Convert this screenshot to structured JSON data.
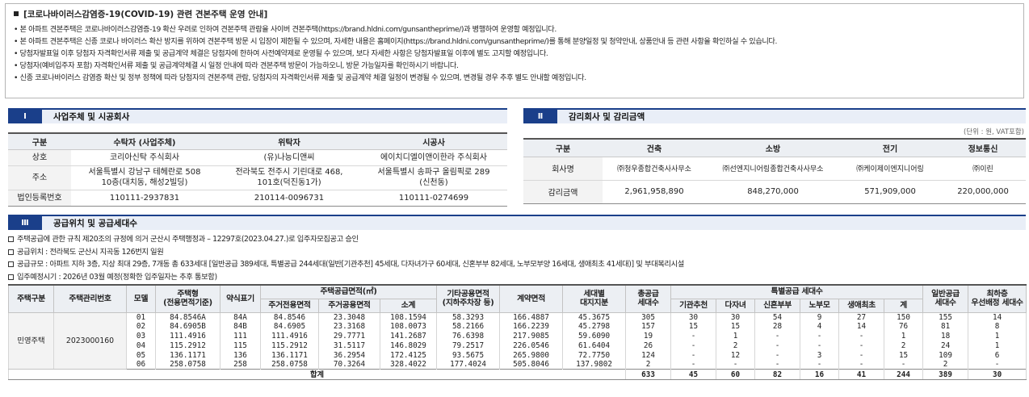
{
  "notice": {
    "title": "[코로나바이러스감염증-19(COVID-19) 관련 견본주택 운영 안내]",
    "items": [
      "• 본 아파트 견본주택은 코로나바이러스감염증-19 확산 우려로 인하여 견본주택 관람을 사이버 견본주택(https://brand.hldni.com/gunsantheprime/)과 병행하여 운영할 예정입니다.",
      "• 본 아파트 견본주택은 신종 코로나 바이러스 확산 방지를 위하여 견본주택 방문 시 입장이 제한될 수 있으며, 자세한 내용은 홈페이지(https://brand.hldni.com/gunsantheprime/)를 통해 분양일정 및 청약안내, 상품안내 등 관련 사항을 확인하실 수 있습니다.",
      "• 당첨자발표일 이후 당첨자 자격확인서류 제출 및 공급계약 체결은 당첨자에 한하여 사전예약제로 운영될 수 있으며, 보다 자세한 사항은 당첨자발표일 이후에 별도 고지할 예정입니다.",
      "• 당첨자(예비입주자 포함) 자격확인서류 제출 및 공급계약체결 시  일정 안내에 따라 견본주택 방문이 가능하오니, 방문 가능일자를 확인하시기 바랍니다.",
      "• 신종 코로나바이러스 감염증 확산 및 정부 정책에 따라 당첨자의 견본주택 관람, 당첨자의 자격확인서류 제출 및 공급계약 체결 일정이 변경될 수 있으며, 변경될 경우 추후 별도 안내할 예정입니다."
    ]
  },
  "section1": {
    "num": "Ⅰ",
    "title": "사업주체 및 시공회사",
    "headers": [
      "구분",
      "수탁자 (사업주체)",
      "위탁자",
      "시공사"
    ],
    "rows": [
      [
        "상호",
        "코리아신탁 주식회사",
        "(유)나능디앤씨",
        "에이치디엘이앤이한라 주식회사"
      ],
      [
        "주소",
        "서울특별시 강남구 테헤란로 508\n10층(대치동, 해성2빌딩)",
        "전라북도 전주시 기린대로 468,\n101호(덕진동1가)",
        "서울특별시 송파구 올림픽로 289\n(신천동)"
      ],
      [
        "법인등록번호",
        "110111-2937831",
        "210114-0096731",
        "110111-0274699"
      ]
    ]
  },
  "section2": {
    "num": "Ⅱ",
    "title": "감리회사 및 감리금액",
    "unit": "(단위 : 원, VAT포함)",
    "headers": [
      "구분",
      "건축",
      "소방",
      "전기",
      "정보통신"
    ],
    "rows": [
      [
        "회사명",
        "㈜청우종합건축사사무소",
        "㈜선엔지니어링종합건축사사무소",
        "㈜케이제이엔지니어링",
        "㈜이린"
      ],
      [
        "감리금액",
        "2,961,958,890",
        "848,270,000",
        "571,909,000",
        "220,000,000"
      ]
    ]
  },
  "section3": {
    "num": "Ⅲ",
    "title": "공급위치 및 공급세대수",
    "info": [
      "주택공급에 관한 규칙 제20조의 규정에 의거 군산시 주택행정과 – 12297호(2023.04.27.)로 입주자모집공고 승인",
      "공급위치 : 전라북도 군산시 지곡동 126번지 일원",
      "공급규모 : 아파트 지하 3층, 지상 최대 29층, 7개동 총 633세대 [일반공급 389세대, 특별공급 244세대(일반[기관추천] 45세대, 다자녀가구 60세대, 신혼부부 82세대, 노부모부양 16세대, 생애최초 41세대)] 및 부대복리시설",
      "입주예정시기 : 2026년 03월 예정(정확한 입주일자는 추후 통보함)"
    ],
    "header": {
      "type": "주택구분",
      "code": "주택관리번호",
      "model": "모델",
      "housing_type": "주택형\n(전용면적기준)",
      "abbr": "약식표기",
      "area_group": "주택공급면적(㎡)",
      "private_area": "주거전용면적",
      "common_area": "주거공용면적",
      "subtotal": "소계",
      "other_common": "기타공용면적\n(지하주차장 등)",
      "contract_area": "계약면적",
      "land_share": "세대별\n대지지분",
      "total_supply": "총공급\n세대수",
      "special_group": "특별공급 세대수",
      "institution": "기관추천",
      "multi_child": "다자녀",
      "newlywed": "신혼부부",
      "elderly": "노부모",
      "first_life": "생애최초",
      "special_total": "계",
      "general": "일반공급\n세대수",
      "lowest_floor": "최하층\n우선배정 세대수"
    },
    "group_type": "민영주택",
    "group_code": "2023000160",
    "rows": [
      [
        "01",
        "84.8546A",
        "84A",
        "84.8546",
        "23.3048",
        "108.1594",
        "58.3293",
        "166.4887",
        "45.3675",
        "305",
        "30",
        "30",
        "54",
        "9",
        "27",
        "150",
        "155",
        "14"
      ],
      [
        "02",
        "84.6905B",
        "84B",
        "84.6905",
        "23.3168",
        "108.0073",
        "58.2166",
        "166.2239",
        "45.2798",
        "157",
        "15",
        "15",
        "28",
        "4",
        "14",
        "76",
        "81",
        "8"
      ],
      [
        "03",
        "111.4916",
        "111",
        "111.4916",
        "29.7771",
        "141.2687",
        "76.6398",
        "217.9085",
        "59.6090",
        "19",
        "-",
        "1",
        "-",
        "-",
        "-",
        "1",
        "18",
        "1"
      ],
      [
        "04",
        "115.2912",
        "115",
        "115.2912",
        "31.5117",
        "146.8029",
        "79.2517",
        "226.0546",
        "61.6404",
        "26",
        "-",
        "2",
        "-",
        "-",
        "-",
        "2",
        "24",
        "1"
      ],
      [
        "05",
        "136.1171",
        "136",
        "136.1171",
        "36.2954",
        "172.4125",
        "93.5675",
        "265.9800",
        "72.7750",
        "124",
        "-",
        "12",
        "-",
        "3",
        "-",
        "15",
        "109",
        "6"
      ],
      [
        "06",
        "258.0758",
        "258",
        "258.0758",
        "70.3264",
        "328.4022",
        "177.4024",
        "505.8046",
        "137.9802",
        "2",
        "-",
        "-",
        "-",
        "-",
        "-",
        "-",
        "2",
        "-"
      ]
    ],
    "total": {
      "label": "합계",
      "values": [
        "633",
        "45",
        "60",
        "82",
        "16",
        "41",
        "244",
        "389",
        "30"
      ]
    }
  }
}
